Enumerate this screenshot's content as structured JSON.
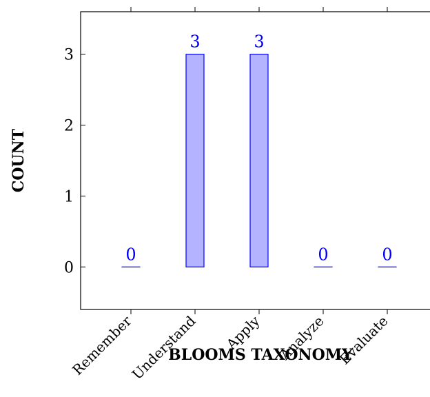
{
  "chart_data": {
    "type": "bar",
    "categories": [
      "Remember",
      "Understand",
      "Apply",
      "Analyze",
      "Evaluate"
    ],
    "values": [
      0,
      3,
      3,
      0,
      0
    ],
    "xlabel": "BLOOMS TAXONOMY",
    "ylabel": "COUNT",
    "ylim": [
      -0.6,
      3.6
    ],
    "yticks": [
      0,
      1,
      2,
      3
    ],
    "grid": false,
    "legend": "none",
    "bar_fill": "#b3b3ff",
    "bar_stroke": "#0000ff",
    "label_color": "#0000ff"
  }
}
